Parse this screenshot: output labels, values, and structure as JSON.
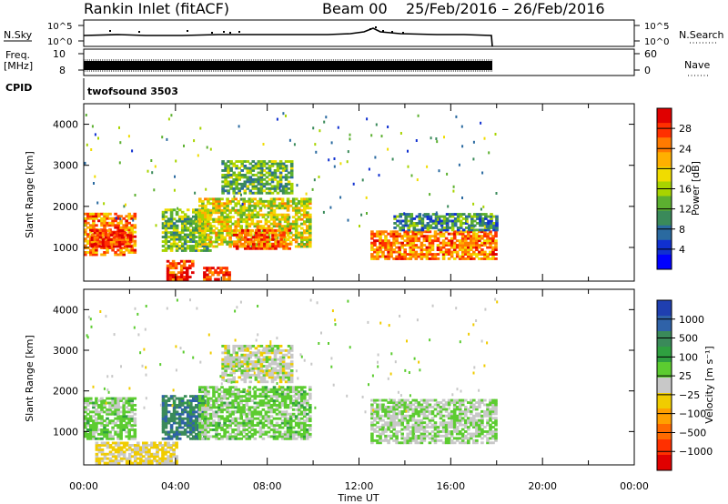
{
  "header": {
    "station": "Rankin Inlet (fitACF)",
    "beam": "Beam 00",
    "date_range": "25/Feb/2016 – 26/Feb/2016"
  },
  "strips": {
    "nsky_label": "N.Sky",
    "nsky_ticks": [
      "10^5",
      "10^0"
    ],
    "nsearch_label": "N.Search",
    "nsearch_ticks": [
      "10^5",
      "10^0"
    ],
    "freq_label_1": "Freq.",
    "freq_label_2": "[MHz]",
    "freq_ticks": [
      "10",
      "8"
    ],
    "nave_label": "Nave",
    "nave_ticks": [
      "60",
      "0"
    ],
    "cpid_label": "CPID",
    "cpid_value": "twofsound 3503"
  },
  "axes": {
    "y_label": "Slant Range [km]",
    "y_ticks": [
      "4000",
      "3000",
      "2000",
      "1000"
    ],
    "x_label": "Time UT",
    "x_ticks": [
      "00:00",
      "04:00",
      "08:00",
      "12:00",
      "16:00",
      "20:00",
      "00:00"
    ]
  },
  "colorbars": {
    "power": {
      "label": "Power [dB]",
      "ticks": [
        "28",
        "24",
        "20",
        "16",
        "12",
        "8",
        "4"
      ],
      "colors": [
        "#e00000",
        "#ff3000",
        "#ff7a00",
        "#ffb000",
        "#f0dc00",
        "#a8d400",
        "#5cb030",
        "#3a8a5a",
        "#2a6aa0",
        "#1030d0",
        "#0000ff"
      ]
    },
    "velocity": {
      "label": "Velocity [m s⁻¹]",
      "ticks": [
        "1000",
        "500",
        "100",
        "25",
        "−25",
        "−100",
        "−500",
        "−1000"
      ],
      "colors": [
        "#1f3fb0",
        "#2f62a8",
        "#3a8a5a",
        "#2fa040",
        "#5ccc30",
        "#c8c8c8",
        "#f0cc00",
        "#ffa000",
        "#ff6a00",
        "#ff3000",
        "#e00000"
      ]
    }
  },
  "chart_data": [
    {
      "type": "heatmap",
      "title": "Power",
      "xlabel": "Time UT",
      "ylabel": "Slant Range [km]",
      "xlim": [
        0,
        24
      ],
      "ylim": [
        180,
        4500
      ],
      "color_scale": {
        "label": "Power [dB]",
        "range": [
          0,
          32
        ]
      },
      "regions": [
        {
          "t": [
            0.0,
            2.2
          ],
          "r": [
            800,
            1800
          ],
          "value": 24
        },
        {
          "t": [
            0.3,
            2.0
          ],
          "r": [
            1000,
            1400
          ],
          "value": 28
        },
        {
          "t": [
            3.4,
            5.5
          ],
          "r": [
            900,
            1900
          ],
          "value": 14
        },
        {
          "t": [
            3.6,
            4.8
          ],
          "r": [
            200,
            650
          ],
          "value": 28
        },
        {
          "t": [
            5.2,
            6.3
          ],
          "r": [
            200,
            500
          ],
          "value": 28
        },
        {
          "t": [
            5.0,
            9.8
          ],
          "r": [
            1000,
            2200
          ],
          "value": 18
        },
        {
          "t": [
            6.5,
            9.0
          ],
          "r": [
            950,
            1400
          ],
          "value": 26
        },
        {
          "t": [
            6.0,
            9.0
          ],
          "r": [
            2300,
            3100
          ],
          "value": 13
        },
        {
          "t": [
            12.5,
            18.0
          ],
          "r": [
            700,
            1400
          ],
          "value": 24
        },
        {
          "t": [
            13.5,
            18.0
          ],
          "r": [
            1400,
            1800
          ],
          "value": 10
        }
      ]
    },
    {
      "type": "heatmap",
      "title": "Velocity",
      "xlabel": "Time UT",
      "ylabel": "Slant Range [km]",
      "xlim": [
        0,
        24
      ],
      "ylim": [
        180,
        4500
      ],
      "color_scale": {
        "label": "Velocity [m s⁻¹]",
        "range": [
          -1000,
          1000
        ]
      },
      "regions": [
        {
          "t": [
            0.0,
            2.2
          ],
          "r": [
            800,
            1800
          ],
          "value": 150
        },
        {
          "t": [
            3.4,
            5.3
          ],
          "r": [
            800,
            1900
          ],
          "value": 600
        },
        {
          "t": [
            5.0,
            9.8
          ],
          "r": [
            800,
            2100
          ],
          "value": 150
        },
        {
          "t": [
            6.0,
            9.0
          ],
          "r": [
            2200,
            3100
          ],
          "value": 0
        },
        {
          "t": [
            12.5,
            18.0
          ],
          "r": [
            700,
            1800
          ],
          "value": 80
        },
        {
          "t": [
            0.5,
            4.0
          ],
          "r": [
            200,
            700
          ],
          "value": -100
        }
      ]
    }
  ]
}
